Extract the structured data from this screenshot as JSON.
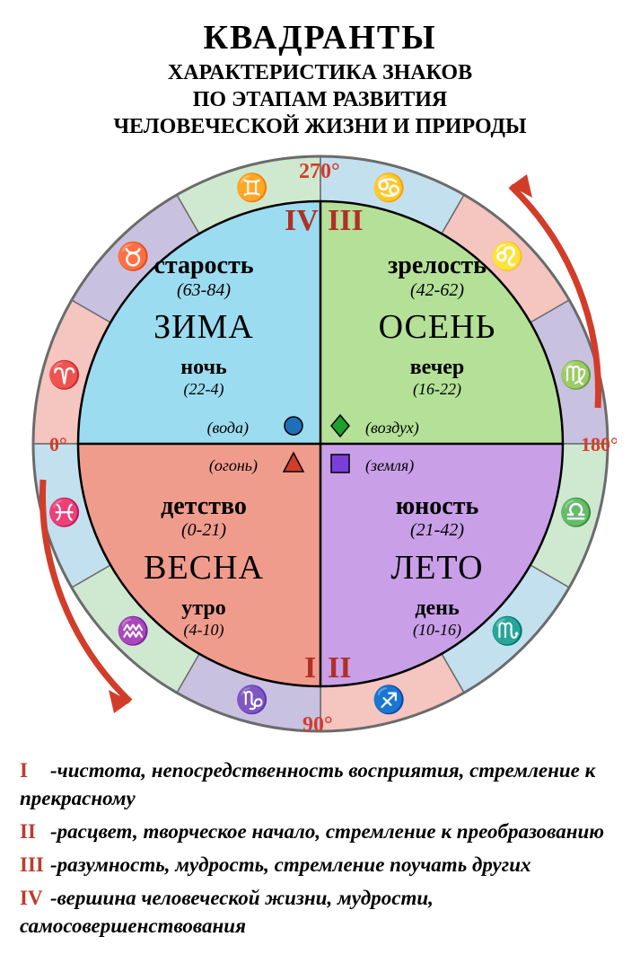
{
  "title": "КВАДРАНТЫ",
  "subtitle_lines": [
    "ХАРАКТЕРИСТИКА ЗНАКОВ",
    "ПО ЭТАПАМ РАЗВИТИЯ",
    "ЧЕЛОВЕЧЕСКОЙ ЖИЗНИ И ПРИРОДЫ"
  ],
  "angles": {
    "a0": "0°",
    "a90": "90°",
    "a180": "180°",
    "a270": "270°"
  },
  "roman": {
    "r1": "I",
    "r2": "II",
    "r3": "III",
    "r4": "IV"
  },
  "ring": {
    "outer_r": 320,
    "inner_r": 270,
    "stroke": "#6b6b6b",
    "sectors": [
      {
        "start": 180,
        "sign": "♈",
        "fill": "#f5c5bf"
      },
      {
        "start": 210,
        "sign": "♉",
        "fill": "#c9c1e0"
      },
      {
        "start": 240,
        "sign": "♊",
        "fill": "#cfe9d0"
      },
      {
        "start": 270,
        "sign": "♋",
        "fill": "#c3e0ef"
      },
      {
        "start": 300,
        "sign": "♌",
        "fill": "#f5c5bf"
      },
      {
        "start": 330,
        "sign": "♍",
        "fill": "#c9c1e0"
      },
      {
        "start": 0,
        "sign": "♎",
        "fill": "#cfe9d0"
      },
      {
        "start": 30,
        "sign": "♏",
        "fill": "#c3e0ef"
      },
      {
        "start": 60,
        "sign": "♐",
        "fill": "#f5c5bf"
      },
      {
        "start": 90,
        "sign": "♑",
        "fill": "#c9c1e0"
      },
      {
        "start": 120,
        "sign": "♒",
        "fill": "#cfe9d0"
      },
      {
        "start": 150,
        "sign": "♓",
        "fill": "#c3e0ef"
      }
    ],
    "glyph_size": 30
  },
  "quads": {
    "q4": {
      "fill": "#9bdcf0",
      "season": "ЗИМА",
      "life": "старость",
      "life_age": "(63-84)",
      "tod": "ночь",
      "tod_h": "(22-4)",
      "elem": "(вода)",
      "elem_shape": "circle",
      "elem_color": "#1f6fb8"
    },
    "q3": {
      "fill": "#b4e197",
      "season": "ОСЕНЬ",
      "life": "зрелость",
      "life_age": "(42-62)",
      "tod": "вечер",
      "tod_h": "(16-22)",
      "elem": "(воздух)",
      "elem_shape": "diamond",
      "elem_color": "#1aa02b"
    },
    "q1": {
      "fill": "#f09c8d",
      "season": "ВЕСНА",
      "life": "детство",
      "life_age": "(0-21)",
      "tod": "утро",
      "tod_h": "(4-10)",
      "elem": "(огонь)",
      "elem_shape": "triangle",
      "elem_color": "#d23d2a"
    },
    "q2": {
      "fill": "#c9a0e8",
      "season": "ЛЕТО",
      "life": "юность",
      "life_age": "(21-42)",
      "tod": "день",
      "tod_h": "(10-16)",
      "elem": "(земля)",
      "elem_shape": "square",
      "elem_color": "#7a3fd6"
    }
  },
  "arrow_color": "#d23d2a",
  "legend": [
    {
      "num": "I",
      "text": "-чистота, непосредственность восприятия, стремление к прекрасному"
    },
    {
      "num": "II",
      "text": "-расцвет, творческое начало, стремление к преобразованию"
    },
    {
      "num": "III",
      "text": "-разумность, мудрость, стремление поучать других"
    },
    {
      "num": "IV",
      "text": "-вершина человеческой жизни, мудрости, самосовершенствования"
    }
  ]
}
